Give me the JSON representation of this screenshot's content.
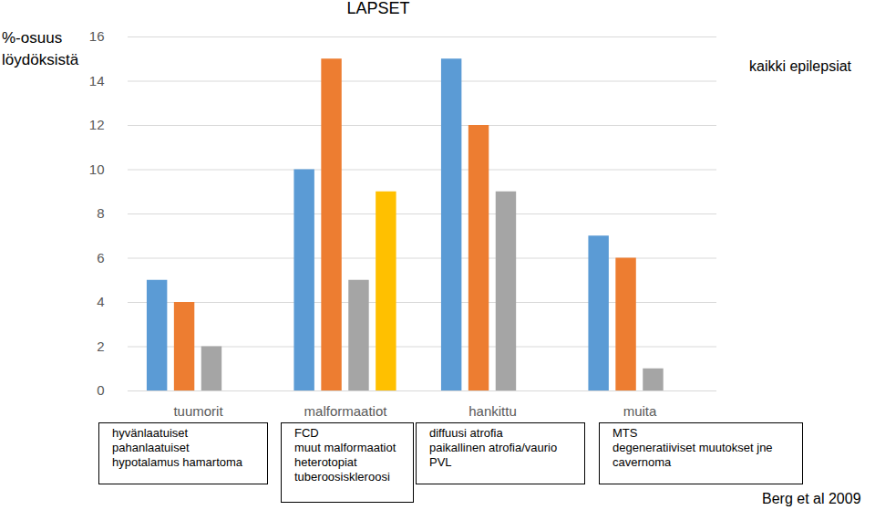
{
  "chart_data": {
    "type": "bar",
    "title": "LAPSET",
    "y_label": "%-osuus löydöksistä",
    "annotation": "kaikki epilepsiat",
    "source": "Berg et al 2009",
    "colors": [
      "#5b9bd5",
      "#ed7d31",
      "#a5a5a5",
      "#ffc000"
    ],
    "groups": [
      {
        "name": "tuumorit",
        "labels": [
          "hyvänlaatuiset",
          "pahanlaatuiset",
          "hypotalamus hamartoma"
        ],
        "values": [
          5,
          4,
          2
        ]
      },
      {
        "name": "malformaatiot",
        "labels": [
          "FCD",
          "muut malformaatiot",
          "heterotopiat",
          "tuberoosiskleroosi"
        ],
        "values": [
          10,
          15,
          5,
          9
        ]
      },
      {
        "name": "hankittu",
        "labels": [
          "diffuusi atrofia",
          "paikallinen atrofia/vaurio",
          "PVL"
        ],
        "values": [
          15,
          12,
          9
        ]
      },
      {
        "name": "muita",
        "labels": [
          "MTS",
          "degeneratiiviset muutokset jne",
          "cavernoma"
        ],
        "values": [
          7,
          6,
          1
        ]
      }
    ],
    "ylim": [
      0,
      16
    ],
    "yticks": [
      0,
      2,
      4,
      6,
      8,
      10,
      12,
      14,
      16
    ],
    "grid": true
  }
}
